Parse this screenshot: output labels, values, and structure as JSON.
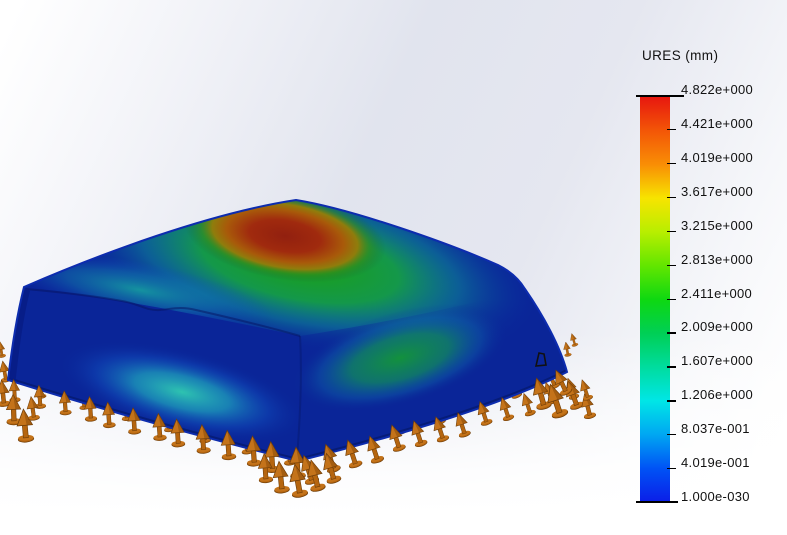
{
  "app": {
    "view_name": "simulation-results-viewport"
  },
  "legend": {
    "title": "URES (mm)",
    "tick_labels": [
      "4.822e+000",
      "4.421e+000",
      "4.019e+000",
      "3.617e+000",
      "3.215e+000",
      "2.813e+000",
      "2.411e+000",
      "2.009e+000",
      "1.607e+000",
      "1.206e+000",
      "8.037e-001",
      "4.019e-001",
      "1.000e-030"
    ],
    "gradient_stops": [
      "#e7170f",
      "#f35607",
      "#f98e05",
      "#f7e400",
      "#b8ee00",
      "#62e600",
      "#0ed811",
      "#00cf55",
      "#00dc9e",
      "#00e6e6",
      "#00a7f2",
      "#0053f5",
      "#0b1ee8"
    ]
  },
  "model": {
    "palette": {
      "base": "#0a2598",
      "rim": "#0d2cae",
      "red": "#92200f",
      "green": "#1ba012",
      "teal": "#16a5a0",
      "cyan": "#2ec3b0",
      "oval": "#13913d",
      "fixture": "#b5650f",
      "fixture-dark": "#7a4208",
      "fixture-light": "#c4731a"
    }
  }
}
